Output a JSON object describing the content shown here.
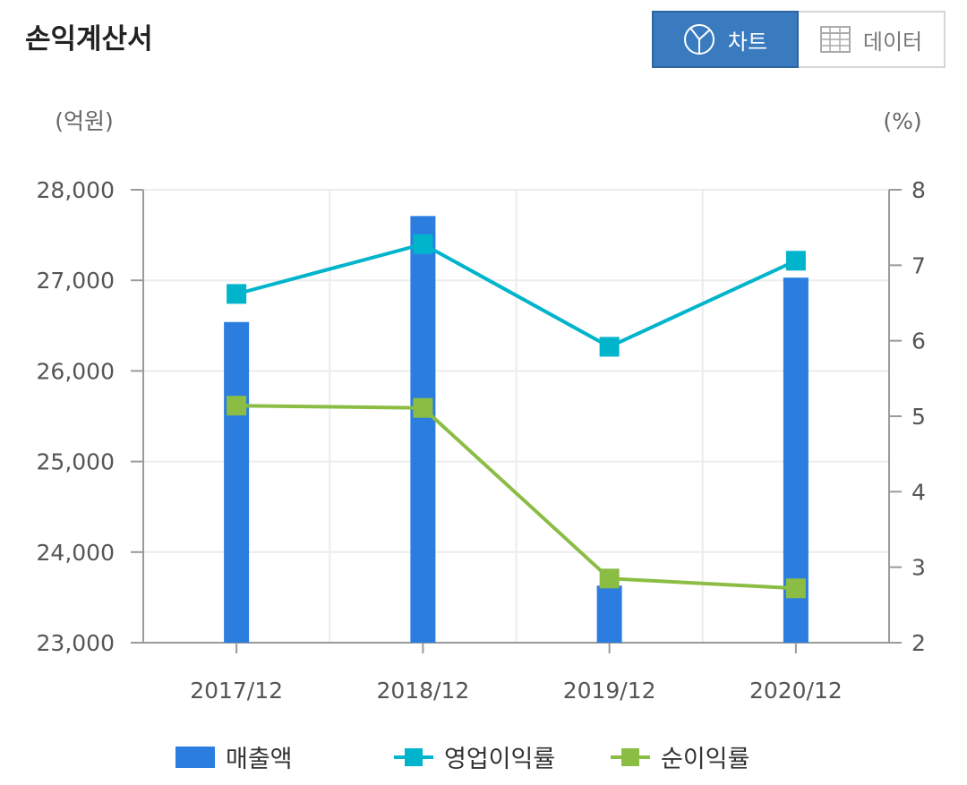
{
  "header": {
    "title": "손익계산서",
    "chart_tab": "차트",
    "data_tab": "데이터"
  },
  "colors": {
    "bar": "#2b7de0",
    "operating": "#00b4cc",
    "net": "#8bbd45",
    "active_tab": "#3a7bbf"
  },
  "chart_data": {
    "type": "bar",
    "categories": [
      "2017/12",
      "2018/12",
      "2019/12",
      "2020/12"
    ],
    "y_left": {
      "unit": "(억원)",
      "ylim": [
        23000,
        28000
      ],
      "ticks": [
        "23,000",
        "24,000",
        "25,000",
        "26,000",
        "27,000",
        "28,000"
      ]
    },
    "y_right": {
      "unit": "(%)",
      "ylim": [
        2,
        8
      ],
      "ticks": [
        "2",
        "3",
        "4",
        "5",
        "6",
        "7",
        "8"
      ]
    },
    "series": [
      {
        "name": "매출액",
        "kind": "bar",
        "axis": "left",
        "values": [
          26540,
          27710,
          23630,
          27030
        ]
      },
      {
        "name": "영업이익률",
        "kind": "line",
        "axis": "right",
        "values": [
          6.62,
          7.28,
          5.92,
          7.06
        ]
      },
      {
        "name": "순이익률",
        "kind": "line",
        "axis": "right",
        "values": [
          5.14,
          5.11,
          2.85,
          2.72
        ]
      }
    ],
    "grid": true,
    "legend": "bottom"
  }
}
